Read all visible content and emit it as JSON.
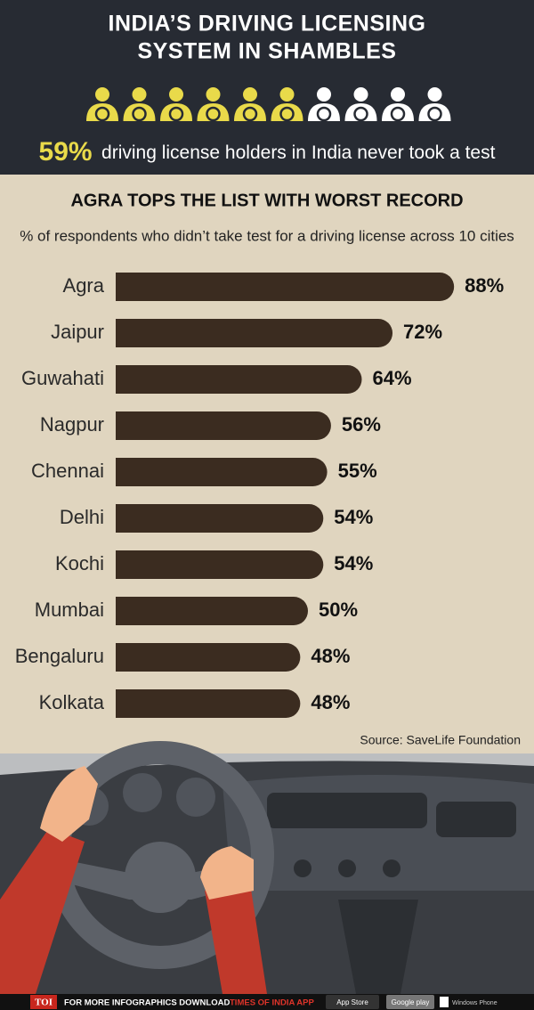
{
  "header": {
    "title_lines": [
      "INDIA’S DRIVING LICENSING",
      "SYSTEM IN SHAMBLES"
    ],
    "stat": {
      "value": 59,
      "label": "59%",
      "text": "driving license holders in India never took a test"
    }
  },
  "chart_data": {
    "type": "bar",
    "title": "AGRA TOPS THE LIST WITH WORST RECORD",
    "subtitle": "% of respondents who didn’t take test for a driving license across 10 cities",
    "categories": [
      "Agra",
      "Jaipur",
      "Guwahati",
      "Nagpur",
      "Chennai",
      "Delhi",
      "Kochi",
      "Mumbai",
      "Bengaluru",
      "Kolkata"
    ],
    "values": [
      88,
      72,
      64,
      56,
      55,
      54,
      54,
      50,
      48,
      48
    ],
    "value_labels": [
      "88%",
      "72%",
      "64%",
      "56%",
      "55%",
      "54%",
      "54%",
      "50%",
      "48%",
      "48%"
    ],
    "color": "#3b2c20",
    "source": "Source: SaveLife Foundation"
  },
  "footer": {
    "brand": "TOI",
    "prompt": "FOR MORE  INFOGRAPHICS DOWNLOAD",
    "app": "TIMES OF INDIA APP",
    "badges": [
      "App Store",
      "Google play",
      "Windows Phone"
    ]
  }
}
